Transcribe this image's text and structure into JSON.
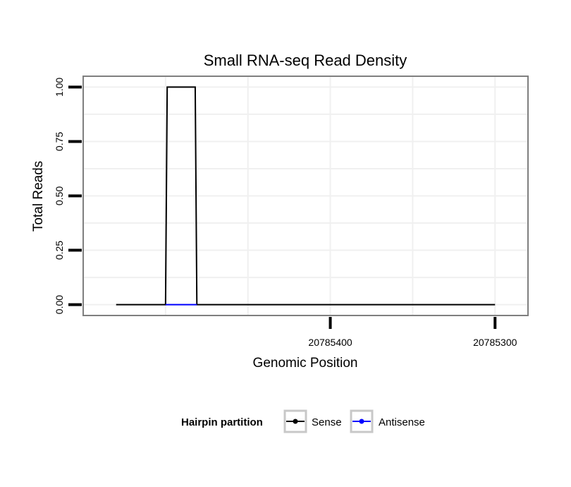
{
  "chart_data": {
    "type": "line",
    "title": "Small RNA-seq Read Density",
    "xlabel": "Genomic Position",
    "ylabel": "Total Reads",
    "x_reversed": true,
    "xlim": [
      20785550,
      20785280
    ],
    "ylim": [
      -0.05,
      1.05
    ],
    "x_ticks": [
      20785400,
      20785300
    ],
    "x_tick_labels": [
      "20785400",
      "20785300"
    ],
    "y_ticks": [
      0.0,
      0.25,
      0.5,
      0.75,
      1.0
    ],
    "y_tick_labels": [
      "0.00",
      "0.25",
      "0.50",
      "0.75",
      "1.00"
    ],
    "grid": true,
    "legend_position": "bottom",
    "legend_title": "Hairpin partition",
    "series": [
      {
        "name": "Sense",
        "color": "#000000",
        "x": [
          20785530,
          20785500,
          20785499,
          20785482,
          20785481,
          20785300
        ],
        "y": [
          0,
          0,
          1,
          1,
          0,
          0
        ]
      },
      {
        "name": "Antisense",
        "color": "#0000ff",
        "x": [
          20785500,
          20785481
        ],
        "y": [
          0,
          0
        ]
      }
    ]
  }
}
